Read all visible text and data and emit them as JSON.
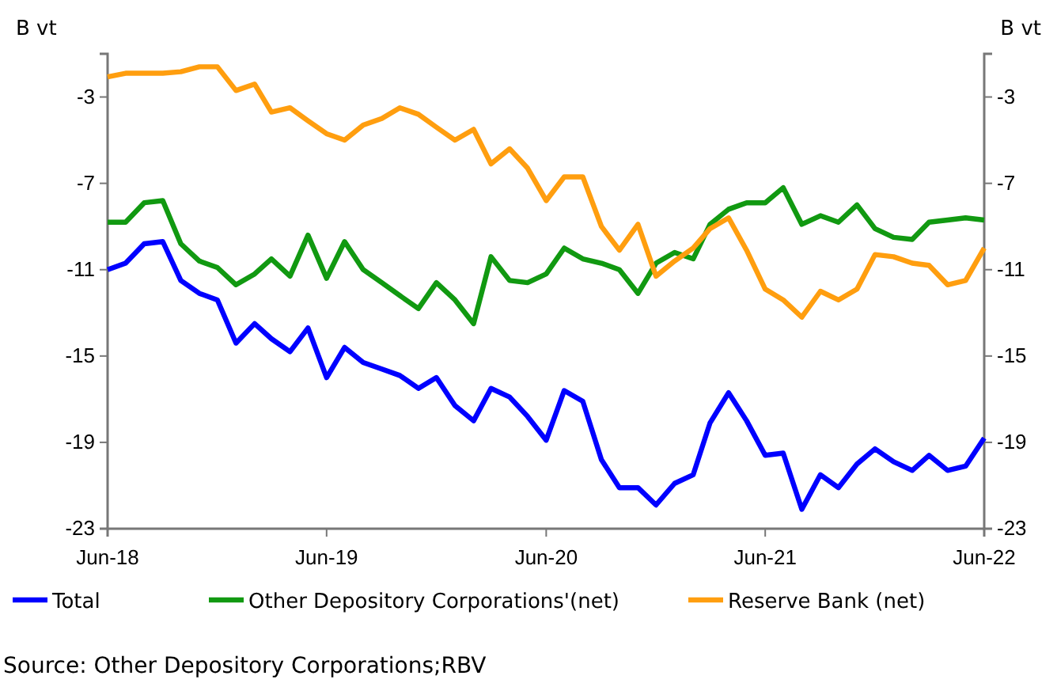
{
  "chart_data": {
    "type": "line",
    "ylabel": "B vt",
    "y2label": "B vt",
    "x": [
      "2018-06",
      "2018-07",
      "2018-08",
      "2018-09",
      "2018-10",
      "2018-11",
      "2018-12",
      "2019-01",
      "2019-02",
      "2019-03",
      "2019-04",
      "2019-05",
      "2019-06",
      "2019-07",
      "2019-08",
      "2019-09",
      "2019-10",
      "2019-11",
      "2019-12",
      "2020-01",
      "2020-02",
      "2020-03",
      "2020-04",
      "2020-05",
      "2020-06",
      "2020-07",
      "2020-08",
      "2020-09",
      "2020-10",
      "2020-11",
      "2020-12",
      "2021-01",
      "2021-02",
      "2021-03",
      "2021-04",
      "2021-05",
      "2021-06",
      "2021-07",
      "2021-08",
      "2021-09",
      "2021-10",
      "2021-11",
      "2021-12",
      "2022-01",
      "2022-02",
      "2022-03",
      "2022-04",
      "2022-05",
      "2022-06"
    ],
    "series": [
      {
        "name": "Total",
        "color": "#0000ff",
        "values": [
          -11.0,
          -10.7,
          -9.8,
          -9.7,
          -11.5,
          -12.1,
          -12.4,
          -14.4,
          -13.5,
          -14.2,
          -14.8,
          -13.7,
          -16.0,
          -14.6,
          -15.3,
          -15.6,
          -15.9,
          -16.5,
          -16.0,
          -17.3,
          -18.0,
          -16.5,
          -16.9,
          -17.8,
          -18.9,
          -16.6,
          -17.1,
          -19.8,
          -21.1,
          -21.1,
          -21.9,
          -20.9,
          -20.5,
          -18.1,
          -16.7,
          -18.0,
          -19.6,
          -19.5,
          -22.1,
          -20.5,
          -21.1,
          -20.0,
          -19.3,
          -19.9,
          -20.3,
          -19.6,
          -20.3,
          -20.1,
          -18.8
        ]
      },
      {
        "name": "Other Depository Corporations'(net)",
        "color": "#119911",
        "values": [
          -8.8,
          -8.8,
          -7.9,
          -7.8,
          -9.8,
          -10.6,
          -10.9,
          -11.7,
          -11.2,
          -10.5,
          -11.3,
          -9.4,
          -11.4,
          -9.7,
          -11.0,
          -11.6,
          -12.2,
          -12.8,
          -11.6,
          -12.4,
          -13.5,
          -10.4,
          -11.5,
          -11.6,
          -11.2,
          -10.0,
          -10.5,
          -10.7,
          -11.0,
          -12.1,
          -10.7,
          -10.2,
          -10.5,
          -8.9,
          -8.2,
          -7.9,
          -7.9,
          -7.2,
          -8.9,
          -8.5,
          -8.8,
          -8.0,
          -9.1,
          -9.5,
          -9.6,
          -8.8,
          -8.7,
          -8.6,
          -8.7
        ]
      },
      {
        "name": "Reserve Bank (net)",
        "color": "#ff9e0f",
        "values": [
          -2.07,
          -1.9,
          -1.9,
          -1.9,
          -1.83,
          -1.6,
          -1.6,
          -2.7,
          -2.4,
          -3.7,
          -3.5,
          -4.1,
          -4.7,
          -5.0,
          -4.3,
          -4.0,
          -3.5,
          -3.8,
          -4.4,
          -5.0,
          -4.5,
          -6.1,
          -5.4,
          -6.3,
          -7.8,
          -6.7,
          -6.7,
          -9.0,
          -10.1,
          -8.9,
          -11.3,
          -10.6,
          -10.0,
          -9.1,
          -8.6,
          -10.1,
          -11.9,
          -12.4,
          -13.2,
          -12.0,
          -12.4,
          -11.9,
          -10.3,
          -10.4,
          -10.7,
          -10.8,
          -11.7,
          -11.5,
          -10.0
        ]
      }
    ],
    "xlim": [
      "2018-06",
      "2022-06"
    ],
    "xticks": [
      {
        "value": "2018-06",
        "label": "Jun-18"
      },
      {
        "value": "2019-06",
        "label": "Jun-19"
      },
      {
        "value": "2020-06",
        "label": "Jun-20"
      },
      {
        "value": "2021-06",
        "label": "Jun-21"
      },
      {
        "value": "2022-06",
        "label": "Jun-22"
      }
    ],
    "ylim": [
      -23,
      -1
    ],
    "yticks": [
      -3,
      -7,
      -11,
      -15,
      -19,
      -23
    ],
    "y2lim": [
      -23,
      -1
    ],
    "y2ticks": [
      -3,
      -7,
      -11,
      -15,
      -19,
      -23
    ],
    "legend": "bottom",
    "grid": false,
    "marker": "none",
    "line_style": "solid",
    "annotations": [
      "Source: Other Depository Corporations;RBV"
    ]
  }
}
